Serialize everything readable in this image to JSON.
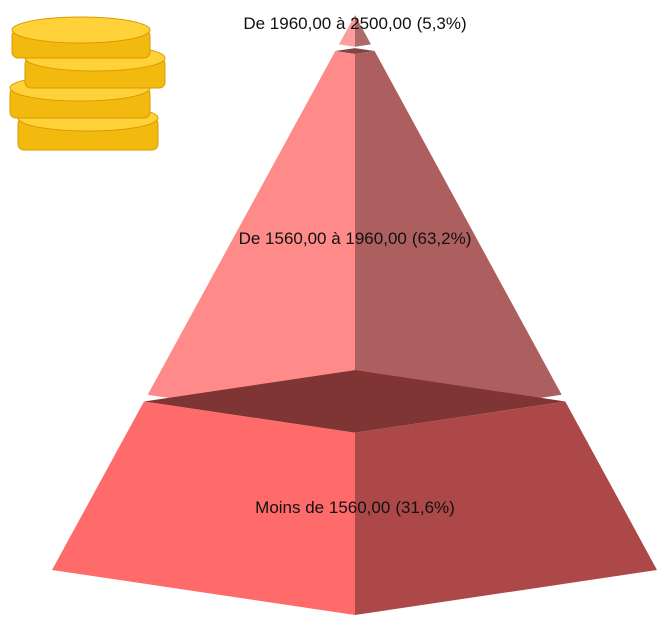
{
  "chart_data": {
    "type": "pyramid",
    "categories": [
      "De 1960,00 à 2500,00",
      "De 1560,00 à 1960,00",
      "Moins de 1560,00"
    ],
    "values": [
      5.3,
      63.2,
      31.6
    ],
    "value_labels": [
      "(5,3%)",
      "(63,2%)",
      "(31,6%)"
    ],
    "colors": [
      "#ff9c9c",
      "#ff8a8a",
      "#ff6a6a"
    ]
  }
}
